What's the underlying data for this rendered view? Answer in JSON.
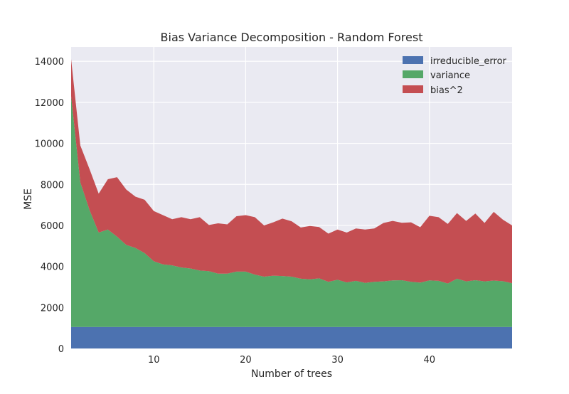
{
  "chart_data": {
    "type": "area",
    "stacked": true,
    "title": "Bias Variance Decomposition - Random Forest",
    "xlabel": "Number of trees",
    "ylabel": "MSE",
    "xlim": [
      1,
      49
    ],
    "ylim": [
      0,
      14700
    ],
    "x_ticks": [
      10,
      20,
      30,
      40
    ],
    "y_ticks": [
      0,
      2000,
      4000,
      6000,
      8000,
      10000,
      12000,
      14000
    ],
    "grid": true,
    "legend_position": "top-right",
    "x": [
      1,
      2,
      3,
      4,
      5,
      6,
      7,
      8,
      9,
      10,
      11,
      12,
      13,
      14,
      15,
      16,
      17,
      18,
      19,
      20,
      21,
      22,
      23,
      24,
      25,
      26,
      27,
      28,
      29,
      30,
      31,
      32,
      33,
      34,
      35,
      36,
      37,
      38,
      39,
      40,
      41,
      42,
      43,
      44,
      45,
      46,
      47,
      48,
      49
    ],
    "series": [
      {
        "name": "irreducible_error",
        "color": "#4c72b0",
        "values": [
          1050,
          1050,
          1050,
          1050,
          1050,
          1050,
          1050,
          1050,
          1050,
          1050,
          1050,
          1050,
          1050,
          1050,
          1050,
          1050,
          1050,
          1050,
          1050,
          1050,
          1050,
          1050,
          1050,
          1050,
          1050,
          1050,
          1050,
          1050,
          1050,
          1050,
          1050,
          1050,
          1050,
          1050,
          1050,
          1050,
          1050,
          1050,
          1050,
          1050,
          1050,
          1050,
          1050,
          1050,
          1050,
          1050,
          1050,
          1050,
          1050
        ]
      },
      {
        "name": "variance",
        "color": "#55a868",
        "values": [
          11250,
          7050,
          5700,
          4600,
          4750,
          4400,
          4000,
          3850,
          3600,
          3200,
          3050,
          3000,
          2900,
          2850,
          2750,
          2720,
          2600,
          2600,
          2700,
          2700,
          2550,
          2450,
          2500,
          2480,
          2450,
          2350,
          2320,
          2370,
          2200,
          2300,
          2170,
          2250,
          2150,
          2200,
          2220,
          2270,
          2280,
          2200,
          2160,
          2270,
          2250,
          2120,
          2350,
          2220,
          2280,
          2220,
          2260,
          2230,
          2130
        ]
      },
      {
        "name": "bias^2",
        "color": "#c44e52",
        "values": [
          1800,
          1800,
          2000,
          1900,
          2450,
          2900,
          2700,
          2500,
          2600,
          2450,
          2400,
          2250,
          2450,
          2400,
          2600,
          2250,
          2450,
          2400,
          2700,
          2750,
          2800,
          2500,
          2600,
          2800,
          2700,
          2500,
          2600,
          2500,
          2350,
          2450,
          2430,
          2550,
          2600,
          2600,
          2850,
          2900,
          2800,
          2900,
          2700,
          3150,
          3100,
          2900,
          3200,
          2950,
          3250,
          2850,
          3350,
          3000,
          2820
        ]
      }
    ]
  }
}
